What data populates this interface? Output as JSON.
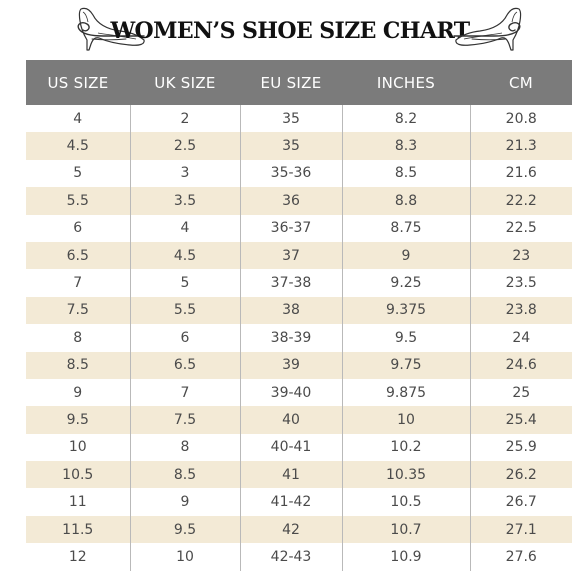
{
  "title": "WOMEN’S SHOE SIZE CHART",
  "colors": {
    "header_bg": "#7b7b7b",
    "stripe": "#f3ead6",
    "text": "#4b4b4b"
  },
  "columns": [
    "US SIZE",
    "UK SIZE",
    "EU SIZE",
    "INCHES",
    "CM"
  ],
  "rows": [
    [
      "4",
      "2",
      "35",
      "8.2",
      "20.8"
    ],
    [
      "4.5",
      "2.5",
      "35",
      "8.3",
      "21.3"
    ],
    [
      "5",
      "3",
      "35-36",
      "8.5",
      "21.6"
    ],
    [
      "5.5",
      "3.5",
      "36",
      "8.8",
      "22.2"
    ],
    [
      "6",
      "4",
      "36-37",
      "8.75",
      "22.5"
    ],
    [
      "6.5",
      "4.5",
      "37",
      "9",
      "23"
    ],
    [
      "7",
      "5",
      "37-38",
      "9.25",
      "23.5"
    ],
    [
      "7.5",
      "5.5",
      "38",
      "9.375",
      "23.8"
    ],
    [
      "8",
      "6",
      "38-39",
      "9.5",
      "24"
    ],
    [
      "8.5",
      "6.5",
      "39",
      "9.75",
      "24.6"
    ],
    [
      "9",
      "7",
      "39-40",
      "9.875",
      "25"
    ],
    [
      "9.5",
      "7.5",
      "40",
      "10",
      "25.4"
    ],
    [
      "10",
      "8",
      "40-41",
      "10.2",
      "25.9"
    ],
    [
      "10.5",
      "8.5",
      "41",
      "10.35",
      "26.2"
    ],
    [
      "11",
      "9",
      "41-42",
      "10.5",
      "26.7"
    ],
    [
      "11.5",
      "9.5",
      "42",
      "10.7",
      "27.1"
    ],
    [
      "12",
      "10",
      "42-43",
      "10.9",
      "27.6"
    ]
  ],
  "icons": [
    "high-heel-shoe-icon",
    "swirl-ornament-icon"
  ]
}
